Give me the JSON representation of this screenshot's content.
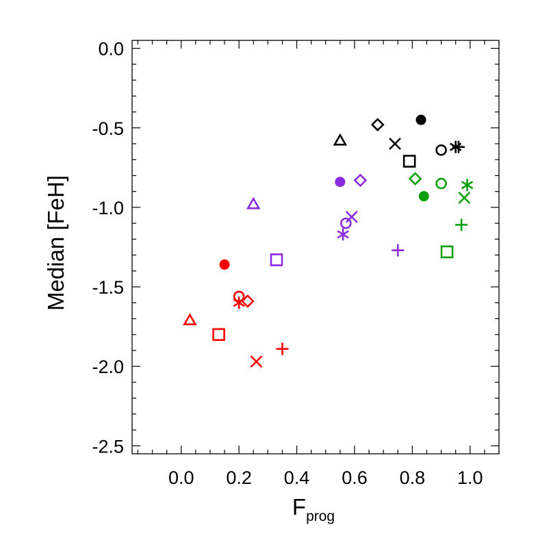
{
  "chart_data": {
    "type": "scatter",
    "title": "",
    "xlabel": "F",
    "xlabel_subscript": "prog",
    "ylabel": "Median [FeH]",
    "xlim": [
      -0.17,
      1.1
    ],
    "ylim": [
      -2.55,
      0.05
    ],
    "xticks": [
      0.0,
      0.2,
      0.4,
      0.6,
      0.8,
      1.0
    ],
    "xtick_labels": [
      "0.0",
      "0.2",
      "0.4",
      "0.6",
      "0.8",
      "1.0"
    ],
    "yticks": [
      0.0,
      -0.5,
      -1.0,
      -1.5,
      -2.0,
      -2.5
    ],
    "ytick_labels": [
      "0.0",
      "-0.5",
      "-1.0",
      "-1.5",
      "-2.0",
      "-2.5"
    ],
    "grid": false,
    "colors": {
      "red": "#ff0000",
      "purple": "#8a2be2",
      "green": "#0aa00a",
      "black": "#000000"
    },
    "series": [
      {
        "color": "red",
        "points": [
          {
            "x": 0.15,
            "y": -1.36,
            "marker": "filled-circle"
          },
          {
            "x": 0.2,
            "y": -1.56,
            "marker": "open-circle"
          },
          {
            "x": 0.2,
            "y": -1.6,
            "marker": "asterisk"
          },
          {
            "x": 0.23,
            "y": -1.59,
            "marker": "diamond"
          },
          {
            "x": 0.03,
            "y": -1.71,
            "marker": "triangle"
          },
          {
            "x": 0.13,
            "y": -1.8,
            "marker": "square"
          },
          {
            "x": 0.26,
            "y": -1.97,
            "marker": "x"
          },
          {
            "x": 0.35,
            "y": -1.89,
            "marker": "plus"
          }
        ]
      },
      {
        "color": "purple",
        "points": [
          {
            "x": 0.25,
            "y": -0.98,
            "marker": "triangle"
          },
          {
            "x": 0.33,
            "y": -1.33,
            "marker": "square"
          },
          {
            "x": 0.55,
            "y": -0.84,
            "marker": "filled-circle"
          },
          {
            "x": 0.62,
            "y": -0.83,
            "marker": "diamond"
          },
          {
            "x": 0.57,
            "y": -1.1,
            "marker": "open-circle"
          },
          {
            "x": 0.59,
            "y": -1.06,
            "marker": "x"
          },
          {
            "x": 0.56,
            "y": -1.17,
            "marker": "asterisk"
          },
          {
            "x": 0.75,
            "y": -1.27,
            "marker": "plus"
          }
        ]
      },
      {
        "color": "green",
        "points": [
          {
            "x": 0.81,
            "y": -0.82,
            "marker": "diamond"
          },
          {
            "x": 0.9,
            "y": -0.85,
            "marker": "open-circle"
          },
          {
            "x": 0.84,
            "y": -0.93,
            "marker": "filled-circle"
          },
          {
            "x": 0.98,
            "y": -0.94,
            "marker": "x"
          },
          {
            "x": 0.99,
            "y": -0.86,
            "marker": "asterisk"
          },
          {
            "x": 0.97,
            "y": -1.11,
            "marker": "plus"
          },
          {
            "x": 0.92,
            "y": -1.28,
            "marker": "square"
          }
        ]
      },
      {
        "color": "black",
        "points": [
          {
            "x": 0.55,
            "y": -0.58,
            "marker": "triangle"
          },
          {
            "x": 0.68,
            "y": -0.48,
            "marker": "diamond"
          },
          {
            "x": 0.83,
            "y": -0.45,
            "marker": "filled-circle"
          },
          {
            "x": 0.74,
            "y": -0.6,
            "marker": "x"
          },
          {
            "x": 0.79,
            "y": -0.71,
            "marker": "square"
          },
          {
            "x": 0.9,
            "y": -0.64,
            "marker": "open-circle"
          },
          {
            "x": 0.95,
            "y": -0.62,
            "marker": "asterisk"
          },
          {
            "x": 0.96,
            "y": -0.62,
            "marker": "plus"
          }
        ]
      }
    ]
  }
}
